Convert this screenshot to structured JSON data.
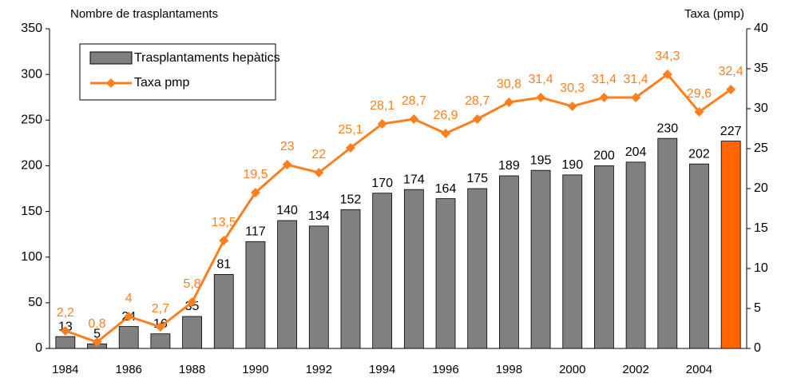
{
  "chart_data": {
    "type": "bar-line",
    "ylabel": "Nombre de trasplantaments",
    "y2label": "Taxa (pmp)",
    "categories": [
      "1984",
      null,
      "1986",
      null,
      "1988",
      null,
      "1990",
      null,
      "1992",
      null,
      "1994",
      null,
      "1996",
      null,
      "1998",
      null,
      "2000",
      null,
      "2002",
      null,
      "2004",
      null
    ],
    "series": [
      {
        "name": "Trasplantaments hepàtics",
        "type": "bar",
        "color": "#808080",
        "colors": [
          "#808080",
          "#808080",
          "#808080",
          "#808080",
          "#808080",
          "#808080",
          "#808080",
          "#808080",
          "#808080",
          "#808080",
          "#808080",
          "#808080",
          "#808080",
          "#808080",
          "#808080",
          "#808080",
          "#808080",
          "#808080",
          "#808080",
          "#808080",
          "#808080",
          "#ff6600"
        ],
        "values": [
          13,
          5,
          24,
          16,
          35,
          81,
          117,
          140,
          134,
          152,
          170,
          174,
          164,
          175,
          189,
          195,
          190,
          200,
          204,
          230,
          202,
          227
        ]
      },
      {
        "name": "Taxa pmp",
        "type": "line",
        "axis": "y2",
        "color": "#ff7f1f",
        "values": [
          2.2,
          0.8,
          4,
          2.7,
          5.8,
          13.5,
          19.5,
          23,
          22,
          25.1,
          28.1,
          28.7,
          26.9,
          28.7,
          30.8,
          31.4,
          30.3,
          31.4,
          31.4,
          34.3,
          29.6,
          32.4
        ],
        "value_labels": [
          "2,2",
          "0,8",
          "4",
          "2,7",
          "5,8",
          "13,5",
          "19,5",
          "23",
          "22",
          "25,1",
          "28,1",
          "28,7",
          "26,9",
          "28,7",
          "30,8",
          "31,4",
          "30,3",
          "31,4",
          "31,4",
          "34,3",
          "29,6",
          "32,4"
        ]
      }
    ],
    "ylim": [
      0,
      350
    ],
    "yticks": [
      0,
      50,
      100,
      150,
      200,
      250,
      300,
      350
    ],
    "y2lim": [
      0,
      40
    ],
    "y2ticks": [
      0,
      5,
      10,
      15,
      20,
      25,
      30,
      35,
      40
    ],
    "legend": "upper left",
    "grid": false
  }
}
